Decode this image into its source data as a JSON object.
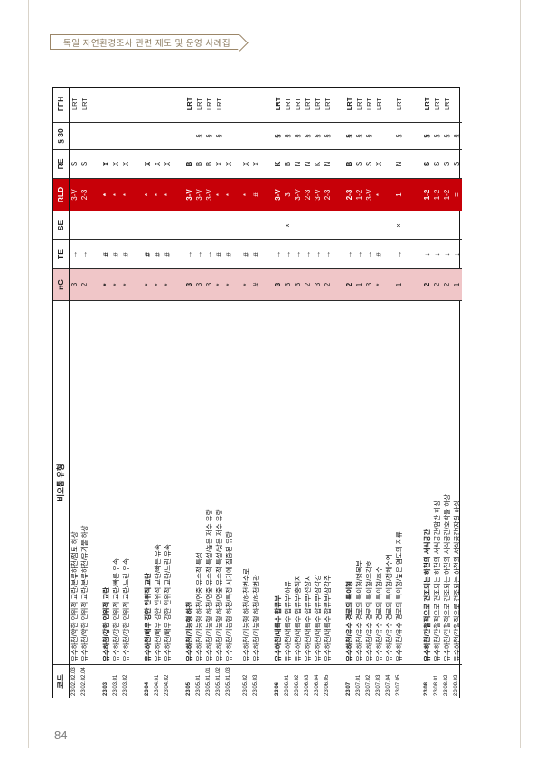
{
  "page": {
    "ribbon_title": "독일 자연환경조사 관련 제도 및 운영 사례집",
    "page_number": "84"
  },
  "table": {
    "orientation": "rotated-90-ccw",
    "headers": {
      "code": "코드",
      "biotope_type": "비오톱 유형",
      "nG": "nG",
      "TE": "TE",
      "SE": "SE",
      "RLD": "RLD",
      "RE": "RE",
      "s30": "§ 30",
      "FFH": "FFH"
    },
    "colors": {
      "rld_band": "#c70008",
      "rld_text": "#ffffff",
      "ng_band": "#f0c6c8",
      "ribbon": "#9b8668"
    },
    "rows": [
      {
        "g": "g1",
        "bold": false,
        "code": "23.02.02.03",
        "name": "유수하천/약한 인위적 교란/본류하천/점토 하상",
        "ng": "3",
        "te": "→",
        "se": "",
        "rld": "3-V",
        "re": "S",
        "s30": "",
        "ffh": "LRT"
      },
      {
        "g": "g1",
        "bold": false,
        "code": "23.02.02.04",
        "name": "유수하천/약한 인위적 교란/본류하천/유기물 하상",
        "ng": "2",
        "te": "→",
        "se": "",
        "rld": "2-3",
        "re": "S",
        "s30": "",
        "ffh": "LRT"
      },
      {
        "g": "g2",
        "bold": true,
        "code": "23.03",
        "name": "유수하천/강한 인위적 교란",
        "ng": "*",
        "te": "#",
        "se": "",
        "rld": "*",
        "re": "X",
        "s30": "",
        "ffh": ""
      },
      {
        "g": "g2",
        "bold": false,
        "code": "23.03.01",
        "name": "유수하천/강한 인위적 교란/빠른 유속",
        "ng": "*",
        "te": "#",
        "se": "",
        "rld": "*",
        "re": "X",
        "s30": "",
        "ffh": ""
      },
      {
        "g": "g2",
        "bold": false,
        "code": "23.03.02",
        "name": "유수하천/강한 인위적 교란/느린 유속",
        "ng": "*",
        "te": "#",
        "se": "",
        "rld": "*",
        "re": "X",
        "s30": "",
        "ffh": ""
      },
      {
        "g": "g3",
        "bold": true,
        "code": "23.04",
        "name": "유수하천/매우 강한 인위적 교란",
        "ng": "*",
        "te": "#",
        "se": "",
        "rld": "*",
        "re": "X",
        "s30": "",
        "ffh": ""
      },
      {
        "g": "g3",
        "bold": false,
        "code": "23.04.01",
        "name": "유수하천/매우 강한 인위적 교란/빠른 유속",
        "ng": "*",
        "te": "#",
        "se": "",
        "rld": "*",
        "re": "X",
        "s30": "",
        "ffh": ""
      },
      {
        "g": "g3",
        "bold": false,
        "code": "23.04.02",
        "name": "유수하천/매우 강한 인위적 교란/느린 유속",
        "ng": "*",
        "te": "#",
        "se": "",
        "rld": "*",
        "re": "X",
        "s30": "",
        "ffh": ""
      },
      {
        "g": "g4",
        "bold": true,
        "code": "23.05",
        "name": "유수하천/기능형 하천",
        "ng": "3",
        "te": "→",
        "se": "",
        "rld": "3-V",
        "re": "B",
        "s30": "",
        "ffh": "LRT"
      },
      {
        "g": "g4",
        "bold": false,
        "code": "23.05.01",
        "name": "유수하천/기능형 하천/연중 유수적 특성",
        "ng": "3",
        "te": "→",
        "se": "",
        "rld": "3-V",
        "re": "B",
        "s30": "§",
        "ffh": "LRT"
      },
      {
        "g": "g4",
        "bold": false,
        "code": "23.05.01.01",
        "name": "유수하천/기능형 하천/연중 유수적 특성/높은 저수 유량",
        "ng": "3",
        "te": "→",
        "se": "",
        "rld": "3-V",
        "re": "B",
        "s30": "§",
        "ffh": "LRT"
      },
      {
        "g": "g4",
        "bold": false,
        "code": "23.05.01.02",
        "name": "유수하천/기능형 하천/연중 유수적 특성/낮은 저수 유량",
        "ng": "*",
        "te": "#",
        "se": "",
        "rld": "*",
        "re": "X",
        "s30": "§",
        "ffh": "LRT"
      },
      {
        "g": "g4",
        "bold": false,
        "code": "23.05.01.03",
        "name": "유수하천/기능형 하천/특정 시기에 집중된 유량",
        "ng": "*",
        "te": "#",
        "se": "",
        "rld": "*",
        "re": "X",
        "s30": "",
        "ffh": ""
      },
      {
        "g": "g4b",
        "bold": false,
        "code": "23.05.02",
        "name": "유수하천/기능형 하천/하천변수로",
        "ng": "*",
        "te": "#",
        "se": "",
        "rld": "*",
        "re": "X",
        "s30": "",
        "ffh": ""
      },
      {
        "g": "g4b",
        "bold": false,
        "code": "23.05.03",
        "name": "유수하천/기능형 하천/하천변관",
        "ng": "#",
        "te": "#",
        "se": "",
        "rld": "#",
        "re": "X",
        "s30": "",
        "ffh": ""
      },
      {
        "g": "g5",
        "bold": true,
        "code": "23.06",
        "name": "유수하천/내륙수 합류부",
        "ng": "3",
        "te": "→",
        "se": "",
        "rld": "3-V",
        "re": "K",
        "s30": "§",
        "ffh": "LRT"
      },
      {
        "g": "g5",
        "bold": false,
        "code": "23.06.01",
        "name": "유수하천/내륙수 합류부/하류",
        "ng": "3",
        "te": "→",
        "se": "x",
        "rld": "3",
        "re": "B",
        "s30": "§",
        "ffh": "LRT"
      },
      {
        "g": "g5",
        "bold": false,
        "code": "23.06.02",
        "name": "유수하천/내륙수 합류부/충적지",
        "ng": "3",
        "te": "→",
        "se": "",
        "rld": "3-V",
        "re": "N",
        "s30": "§",
        "ffh": "LRT"
      },
      {
        "g": "g5",
        "bold": false,
        "code": "23.06.03",
        "name": "유수하천/내륙수 합류부/선상지",
        "ng": "2",
        "te": "→",
        "se": "",
        "rld": "2-3",
        "re": "N",
        "s30": "§",
        "ffh": "LRT"
      },
      {
        "g": "g5",
        "bold": false,
        "code": "23.06.04",
        "name": "유수하천/내륙수 합류부/삼각강",
        "ng": "3",
        "te": "→",
        "se": "",
        "rld": "3-V",
        "re": "K",
        "s30": "§",
        "ffh": "LRT"
      },
      {
        "g": "g5",
        "bold": false,
        "code": "23.06.05",
        "name": "유수하천/내륙수 합류부/삼각주",
        "ng": "2",
        "te": "→",
        "se": "",
        "rld": "2-3",
        "re": "N",
        "s30": "§",
        "ffh": "LRT"
      },
      {
        "g": "g6",
        "bold": true,
        "code": "23.07",
        "name": "유수하천/유수 경로의 특이형",
        "ng": "2",
        "te": "→",
        "se": "",
        "rld": "2-3",
        "re": "B",
        "s30": "§",
        "ffh": "LRT"
      },
      {
        "g": "g6",
        "bold": false,
        "code": "23.07.01",
        "name": "유수하천/유수 경로의 특이형/병목부",
        "ng": "1",
        "te": "→",
        "se": "",
        "rld": "1-2",
        "re": "S",
        "s30": "§",
        "ffh": "LRT"
      },
      {
        "g": "g6",
        "bold": false,
        "code": "23.07.02",
        "name": "유수하천/유수 경로의 특이형/우각호",
        "ng": "3",
        "te": "→",
        "se": "",
        "rld": "3-V",
        "re": "S",
        "s30": "§",
        "ffh": "LRT"
      },
      {
        "g": "g6",
        "bold": false,
        "code": "23.07.03",
        "name": "유수하천/유수 경로의 특이형/호수",
        "ng": "*",
        "te": "#",
        "se": "",
        "rld": "*",
        "re": "X",
        "s30": "",
        "ffh": "LRT"
      },
      {
        "g": "g6",
        "bold": false,
        "code": "23.07.04",
        "name": "유수하천/유수 경로의 특이형/정체수역",
        "ng": "",
        "te": "",
        "se": "",
        "rld": "",
        "re": "",
        "s30": "",
        "ffh": ""
      },
      {
        "g": "g6",
        "bold": false,
        "code": "23.07.05",
        "name": "유수하천/유수 경로의 특이형/높은 염도의 지류",
        "ng": "1",
        "te": "→",
        "se": "x",
        "rld": "1",
        "re": "N",
        "s30": "§",
        "ffh": "LRT"
      },
      {
        "g": "g7",
        "bold": true,
        "code": "23.08",
        "name": "유수하천/간헐적으로 건조되는 하천의 서식공간",
        "ng": "2",
        "te": "↓",
        "se": "",
        "rld": "1-2",
        "re": "S",
        "s30": "§",
        "ffh": "LRT"
      },
      {
        "g": "g7",
        "bold": false,
        "code": "23.08.01",
        "name": "유수하천/간헐적으로 건조되는 하천의 서식공간/암반 하상",
        "ng": "2",
        "te": "↓",
        "se": "",
        "rld": "1-2",
        "re": "S",
        "s30": "§",
        "ffh": "LRT"
      },
      {
        "g": "g7",
        "bold": false,
        "code": "23.08.02",
        "name": "유수하천/간헐적으로 건조되는 하천의 서식공간/호박돌 하상",
        "ng": "2",
        "te": "↓",
        "se": "",
        "rld": "1-2",
        "re": "S",
        "s30": "§",
        "ffh": "LRT"
      },
      {
        "g": "g7",
        "bold": false,
        "code": "23.08.03",
        "name": "유수하천/간헐적으로 건조되는 하천의 서식공간/자갈 하상",
        "ng": "1",
        "te": "↓",
        "se": "",
        "rld": "=",
        "re": "S",
        "s30": "§",
        "ffh": ""
      }
    ]
  }
}
